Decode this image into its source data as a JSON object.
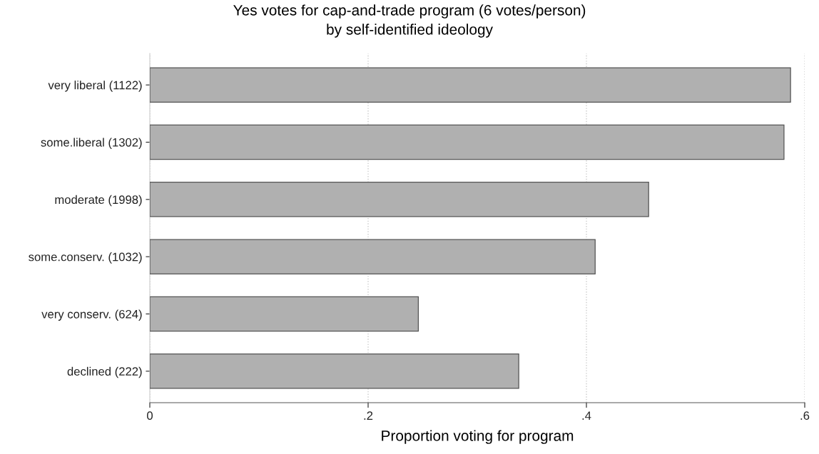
{
  "chart_data": {
    "type": "bar",
    "orientation": "horizontal",
    "title": "Yes votes for cap-and-trade program (6 votes/person)\nby self-identified ideology",
    "xlabel": "Proportion voting for program",
    "categories": [
      "very liberal (1122)",
      "some.liberal (1302)",
      "moderate (1998)",
      "some.conserv. (1032)",
      "very conserv. (624)",
      "declined (222)"
    ],
    "values": [
      0.587,
      0.581,
      0.457,
      0.408,
      0.246,
      0.338
    ],
    "color": "#b0b0b0",
    "xlim": [
      0,
      0.6
    ],
    "xticks": [
      0,
      {
        "value": 0.2,
        "label": ".2"
      },
      {
        "value": 0.4,
        "label": ".4"
      },
      {
        "value": 0.6,
        "label": ".6"
      }
    ],
    "grid": "x",
    "legend": false
  }
}
